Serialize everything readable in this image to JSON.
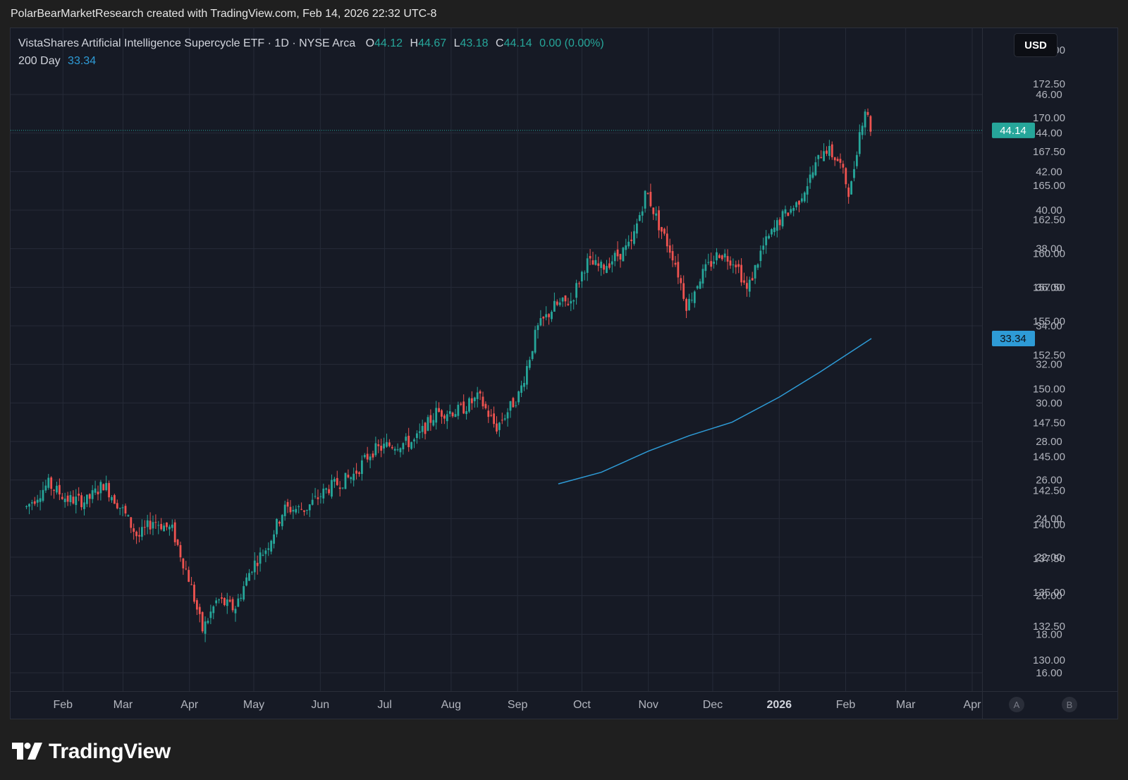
{
  "header": {
    "attribution": "PolarBearMarketResearch created with TradingView.com, Feb 14, 2026 22:32 UTC-8"
  },
  "legend": {
    "symbol_line": "VistaShares Artificial Intelligence Supercycle ETF · 1D · NYSE Arca",
    "open_label": "O",
    "open_value": "44.12",
    "high_label": "H",
    "high_value": "44.67",
    "low_label": "L",
    "low_value": "43.18",
    "close_label": "C",
    "close_value": "44.14",
    "change": "0.00 (0.00%)",
    "indicator_label": "200 Day",
    "indicator_value": "33.34"
  },
  "currency": "USD",
  "colors": {
    "background": "#161a25",
    "grid": "#262b38",
    "up": "#26a69a",
    "down": "#ef5350",
    "ma": "#2e9bd6",
    "price_label_bg": "#26a69a",
    "ma_label_bg": "#2e9bd6"
  },
  "chart_data": {
    "type": "candlestick",
    "title": "VistaShares Artificial Intelligence Supercycle ETF · 1D · NYSE Arca",
    "xlabel": "",
    "ylabel": "",
    "x_ticks": [
      "Feb",
      "Mar",
      "Apr",
      "May",
      "Jun",
      "Jul",
      "Aug",
      "Sep",
      "Oct",
      "Nov",
      "Dec",
      "2026",
      "Feb",
      "Mar",
      "Apr"
    ],
    "y_ticks_left": [
      "46.00",
      "44.00",
      "42.00",
      "40.00",
      "38.00",
      "36.00",
      "34.00",
      "32.00",
      "30.00",
      "28.00",
      "26.00",
      "24.00",
      "22.00",
      "20.00",
      "18.00",
      "16.00"
    ],
    "y_ticks_right": [
      "175.00",
      "172.50",
      "170.00",
      "167.50",
      "165.00",
      "162.50",
      "160.00",
      "157.50",
      "155.00",
      "152.50",
      "150.00",
      "147.50",
      "145.00",
      "142.50",
      "140.00",
      "137.50",
      "135.00",
      "132.50",
      "130.00"
    ],
    "ylim": [
      15.98,
      47.96
    ],
    "grid": true,
    "current_price": 44.14,
    "current_price_label": "44.14",
    "ma_value": 33.34,
    "ma_label": "33.34",
    "scale_markers": [
      "A",
      "B"
    ],
    "trend_path": [
      [
        "2025-01-15",
        24.6
      ],
      [
        "2025-01-25",
        25.8
      ],
      [
        "2025-02-03",
        25.0
      ],
      [
        "2025-02-12",
        24.9
      ],
      [
        "2025-02-20",
        25.8
      ],
      [
        "2025-03-01",
        24.4
      ],
      [
        "2025-03-08",
        23.0
      ],
      [
        "2025-03-15",
        23.9
      ],
      [
        "2025-03-24",
        23.4
      ],
      [
        "2025-04-01",
        20.8
      ],
      [
        "2025-04-07",
        18.2
      ],
      [
        "2025-04-14",
        19.8
      ],
      [
        "2025-04-22",
        19.3
      ],
      [
        "2025-04-30",
        21.5
      ],
      [
        "2025-05-07",
        22.5
      ],
      [
        "2025-05-15",
        24.5
      ],
      [
        "2025-05-25",
        24.5
      ],
      [
        "2025-06-05",
        25.6
      ],
      [
        "2025-06-16",
        26.2
      ],
      [
        "2025-06-25",
        27.5
      ],
      [
        "2025-07-03",
        27.8
      ],
      [
        "2025-07-15",
        28.0
      ],
      [
        "2025-07-25",
        29.5
      ],
      [
        "2025-08-05",
        29.6
      ],
      [
        "2025-08-14",
        30.3
      ],
      [
        "2025-08-22",
        28.7
      ],
      [
        "2025-09-02",
        30.5
      ],
      [
        "2025-09-10",
        33.8
      ],
      [
        "2025-09-18",
        35.0
      ],
      [
        "2025-09-26",
        35.3
      ],
      [
        "2025-10-03",
        37.3
      ],
      [
        "2025-10-10",
        37.0
      ],
      [
        "2025-10-17",
        37.6
      ],
      [
        "2025-10-24",
        38.2
      ],
      [
        "2025-10-31",
        41.0
      ],
      [
        "2025-11-06",
        39.2
      ],
      [
        "2025-11-13",
        37.5
      ],
      [
        "2025-11-19",
        35.0
      ],
      [
        "2025-11-25",
        36.5
      ],
      [
        "2025-12-04",
        37.8
      ],
      [
        "2025-12-12",
        37.3
      ],
      [
        "2025-12-17",
        35.8
      ],
      [
        "2025-12-24",
        38.0
      ],
      [
        "2026-01-02",
        39.6
      ],
      [
        "2026-01-09",
        40.3
      ],
      [
        "2026-01-16",
        41.8
      ],
      [
        "2026-01-22",
        43.3
      ],
      [
        "2026-01-29",
        42.5
      ],
      [
        "2026-02-03",
        40.8
      ],
      [
        "2026-02-07",
        43.8
      ],
      [
        "2026-02-10",
        45.3
      ],
      [
        "2026-02-13",
        44.14
      ]
    ],
    "ma_series": [
      [
        "2025-09-20",
        25.8
      ],
      [
        "2025-10-10",
        26.4
      ],
      [
        "2025-11-01",
        27.5
      ],
      [
        "2025-11-20",
        28.3
      ],
      [
        "2025-12-10",
        29.0
      ],
      [
        "2026-01-01",
        30.3
      ],
      [
        "2026-01-20",
        31.6
      ],
      [
        "2026-02-13",
        33.34
      ]
    ]
  },
  "brand": {
    "name": "TradingView"
  }
}
